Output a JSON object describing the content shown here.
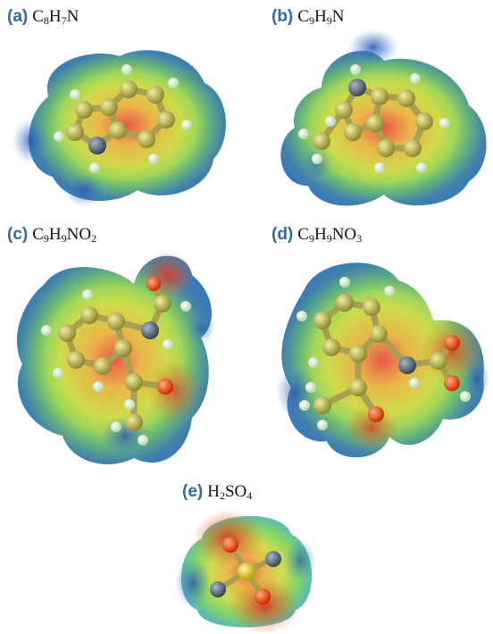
{
  "panels": [
    {
      "tag": "(a)",
      "formula": [
        [
          "C",
          ""
        ],
        [
          "8",
          ""
        ],
        [
          "H",
          ""
        ],
        [
          "7",
          ""
        ],
        [
          "N",
          ""
        ]
      ]
    },
    {
      "tag": "(b)",
      "formula": []
    },
    {
      "tag": "(c)",
      "formula": []
    },
    {
      "tag": "(d)",
      "formula": []
    },
    {
      "tag": "(e)",
      "formula": []
    }
  ],
  "labels": {
    "a": {
      "tag": "(a)",
      "p1": "C",
      "s1": "8",
      "p2": "H",
      "s2": "7",
      "p3": "N"
    },
    "b": {
      "tag": "(b)",
      "p1": "C",
      "s1": "9",
      "p2": "H",
      "s2": "9",
      "p3": "N"
    },
    "c": {
      "tag": "(c)",
      "p1": "C",
      "s1": "9",
      "p2": "H",
      "s2": "9",
      "p3": "NO",
      "s3": "2"
    },
    "d": {
      "tag": "(d)",
      "p1": "C",
      "s1": "9",
      "p2": "H",
      "s2": "9",
      "p3": "NO",
      "s3": "3"
    },
    "e": {
      "tag": "(e)",
      "p1": "H",
      "s1": "2",
      "p2": "SO",
      "s2": "4"
    }
  },
  "colors": {
    "label_tag": "#2e6aa8",
    "surface_negative": "#d43a2a",
    "surface_neutral": "#d8d840",
    "surface_positive": "#2a4fb0",
    "atom_carbon": "#b7b04a",
    "atom_nitrogen": "#5a6a78",
    "atom_oxygen": "#ff4a1a",
    "atom_hydrogen": "#dcefc8"
  }
}
